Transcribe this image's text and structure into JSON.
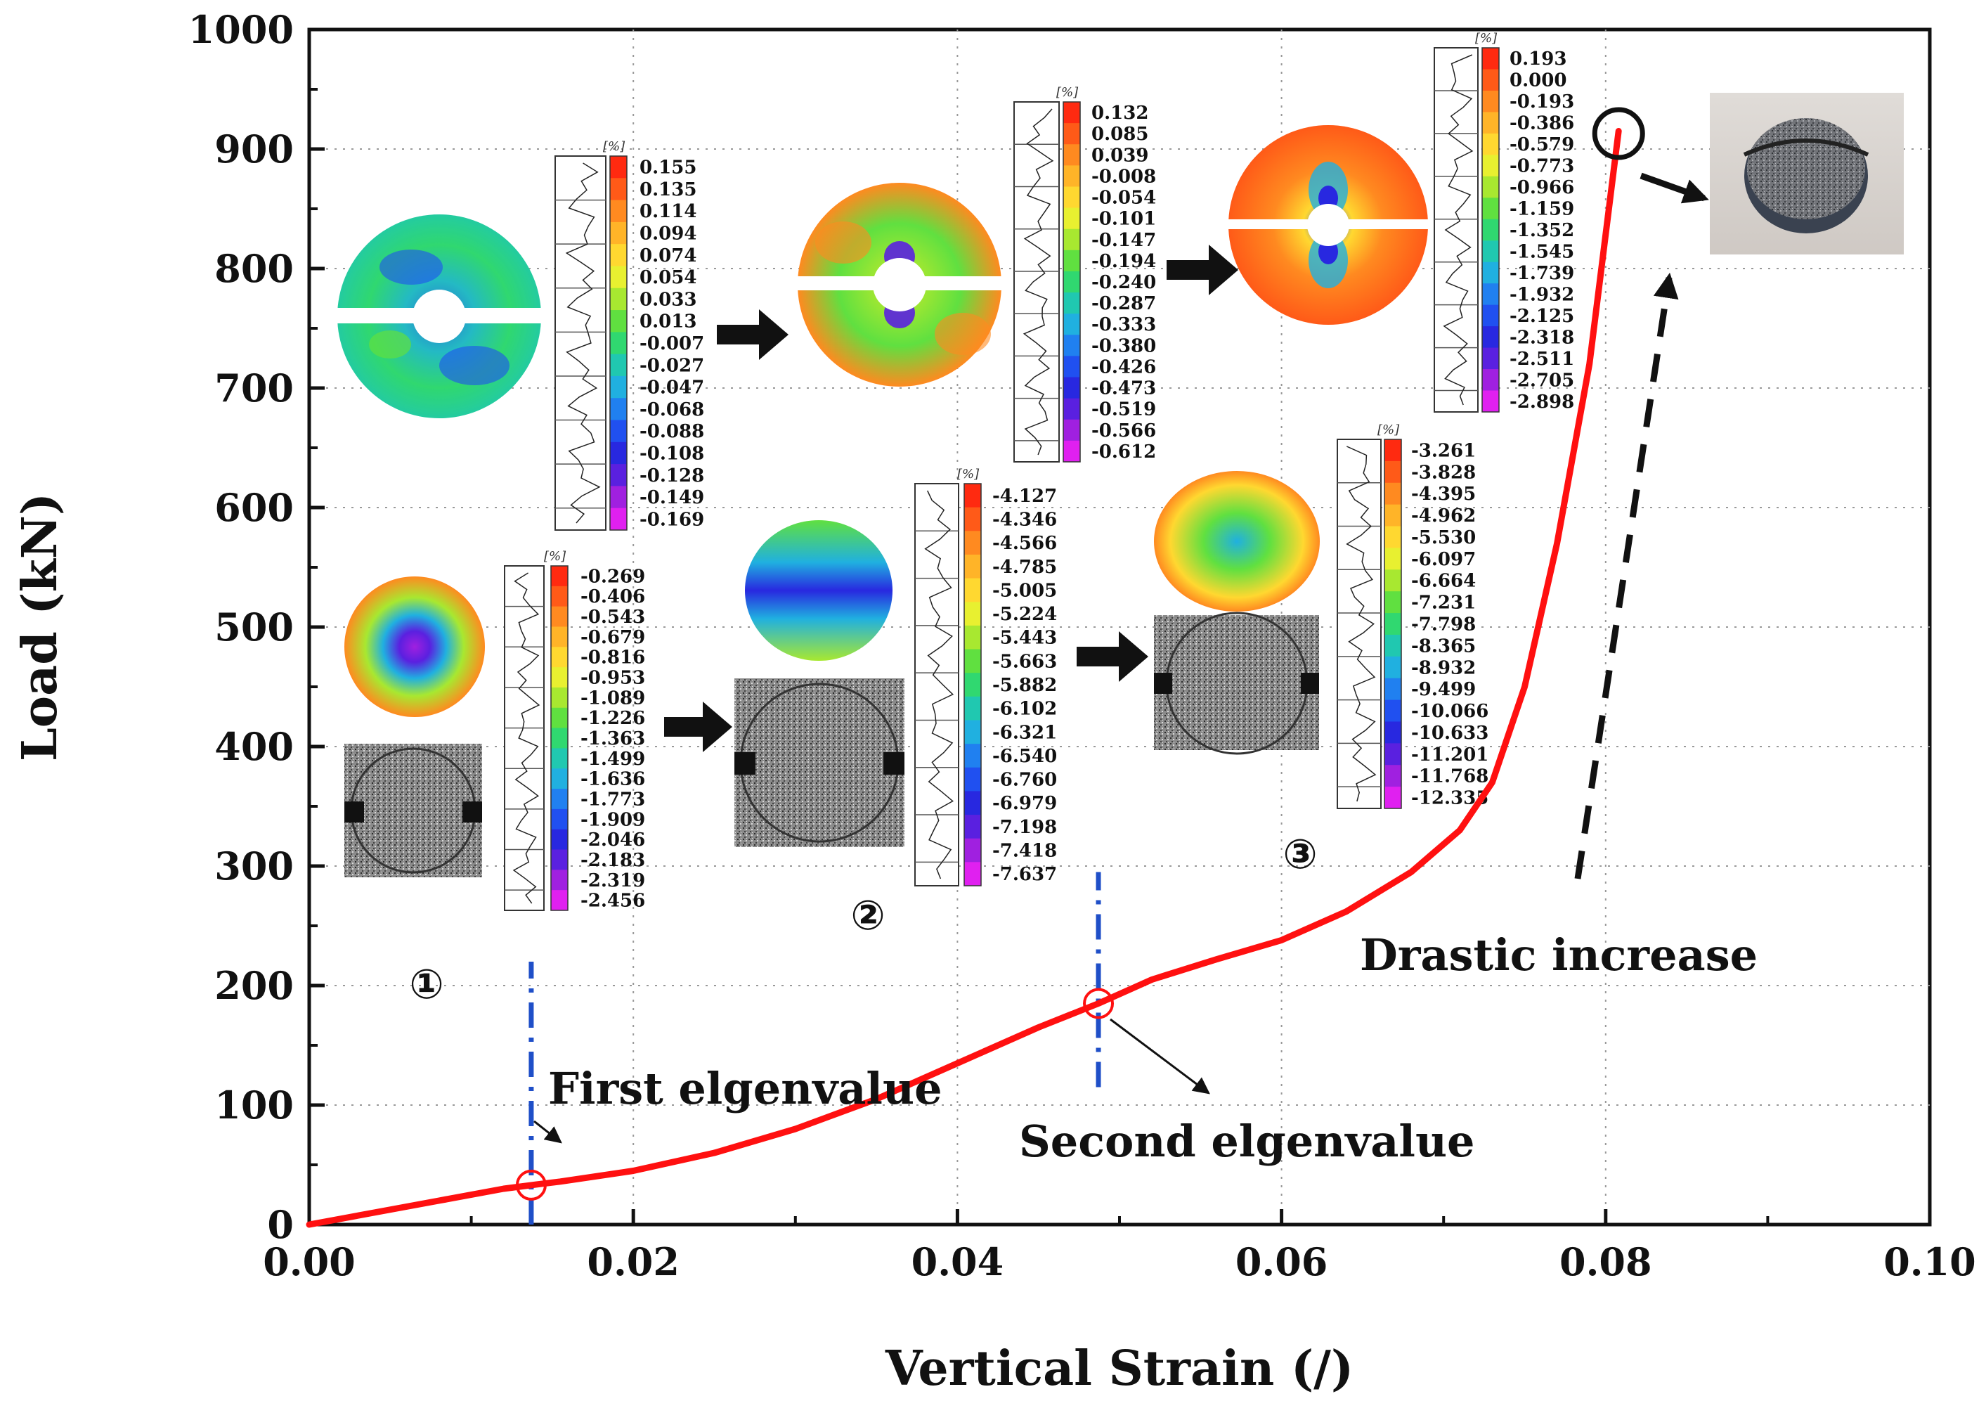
{
  "chart_data": {
    "type": "line",
    "xlabel": "Vertical Strain (/)",
    "ylabel": "Load (kN)",
    "xlim": [
      0.0,
      0.1
    ],
    "ylim": [
      0,
      1000
    ],
    "x_ticks": [
      "0.00",
      "0.02",
      "0.04",
      "0.06",
      "0.08",
      "0.10"
    ],
    "y_ticks": [
      "0",
      "100",
      "200",
      "300",
      "400",
      "500",
      "600",
      "700",
      "800",
      "900",
      "1000"
    ],
    "series": [
      {
        "name": "Load-strain curve",
        "color": "#ff1010",
        "x": [
          0.0,
          0.004,
          0.008,
          0.012,
          0.0137,
          0.0155,
          0.02,
          0.025,
          0.03,
          0.035,
          0.04,
          0.045,
          0.0487,
          0.052,
          0.056,
          0.06,
          0.064,
          0.068,
          0.071,
          0.073,
          0.075,
          0.077,
          0.079,
          0.0808
        ],
        "y": [
          0,
          10,
          20,
          30,
          33,
          36,
          45,
          60,
          80,
          105,
          135,
          165,
          185,
          205,
          222,
          238,
          262,
          295,
          330,
          370,
          450,
          570,
          720,
          915
        ]
      }
    ],
    "markers": [
      {
        "name": "First elgenvalue point",
        "x": 0.0137,
        "y": 33
      },
      {
        "name": "Second elgenvalue point",
        "x": 0.0487,
        "y": 185
      },
      {
        "name": "Failure point",
        "x": 0.0808,
        "y": 910
      }
    ],
    "vlines": [
      {
        "x": 0.0137,
        "y_from": 0,
        "y_to": 220,
        "color": "#1f4fc8"
      },
      {
        "x": 0.0487,
        "y_from": 115,
        "y_to": 295,
        "color": "#1f4fc8"
      }
    ],
    "annotations": {
      "first": "First elgenvalue",
      "second": "Second elgenvalue",
      "drastic": "Drastic increase"
    },
    "stage_labels": [
      "①",
      "②",
      "③"
    ]
  },
  "colorbars": [
    {
      "unit": "[%]",
      "values": [
        "0.155",
        "0.135",
        "0.114",
        "0.094",
        "0.074",
        "0.054",
        "0.033",
        "0.013",
        "-0.007",
        "-0.027",
        "-0.047",
        "-0.068",
        "-0.088",
        "-0.108",
        "-0.128",
        "-0.149",
        "-0.169"
      ]
    },
    {
      "unit": "[%]",
      "values": [
        "0.132",
        "0.085",
        "0.039",
        "-0.008",
        "-0.054",
        "-0.101",
        "-0.147",
        "-0.194",
        "-0.240",
        "-0.287",
        "-0.333",
        "-0.380",
        "-0.426",
        "-0.473",
        "-0.519",
        "-0.566",
        "-0.612"
      ]
    },
    {
      "unit": "[%]",
      "values": [
        "0.193",
        "0.000",
        "-0.193",
        "-0.386",
        "-0.579",
        "-0.773",
        "-0.966",
        "-1.159",
        "-1.352",
        "-1.545",
        "-1.739",
        "-1.932",
        "-2.125",
        "-2.318",
        "-2.511",
        "-2.705",
        "-2.898"
      ]
    },
    {
      "unit": "[%]",
      "values": [
        "-0.269",
        "-0.406",
        "-0.543",
        "-0.679",
        "-0.816",
        "-0.953",
        "-1.089",
        "-1.226",
        "-1.363",
        "-1.499",
        "-1.636",
        "-1.773",
        "-1.909",
        "-2.046",
        "-2.183",
        "-2.319",
        "-2.456"
      ]
    },
    {
      "unit": "[%]",
      "values": [
        "-4.127",
        "-4.346",
        "-4.566",
        "-4.785",
        "-5.005",
        "-5.224",
        "-5.443",
        "-5.663",
        "-5.882",
        "-6.102",
        "-6.321",
        "-6.540",
        "-6.760",
        "-6.979",
        "-7.198",
        "-7.418",
        "-7.637"
      ]
    },
    {
      "unit": "[%]",
      "values": [
        "-3.261",
        "-3.828",
        "-4.395",
        "-4.962",
        "-5.530",
        "-6.097",
        "-6.664",
        "-7.231",
        "-7.798",
        "-8.365",
        "-8.932",
        "-9.499",
        "-10.066",
        "-10.633",
        "-11.201",
        "-11.768",
        "-12.335"
      ]
    }
  ],
  "palette": [
    "#ff2a10",
    "#ff5a18",
    "#ff8a20",
    "#ffb428",
    "#ffd830",
    "#e8f030",
    "#a8e830",
    "#60e040",
    "#30d870",
    "#20c8b0",
    "#20b0e0",
    "#2080f0",
    "#2050f0",
    "#2828e0",
    "#5a20e0",
    "#a020e0",
    "#e020f0"
  ]
}
